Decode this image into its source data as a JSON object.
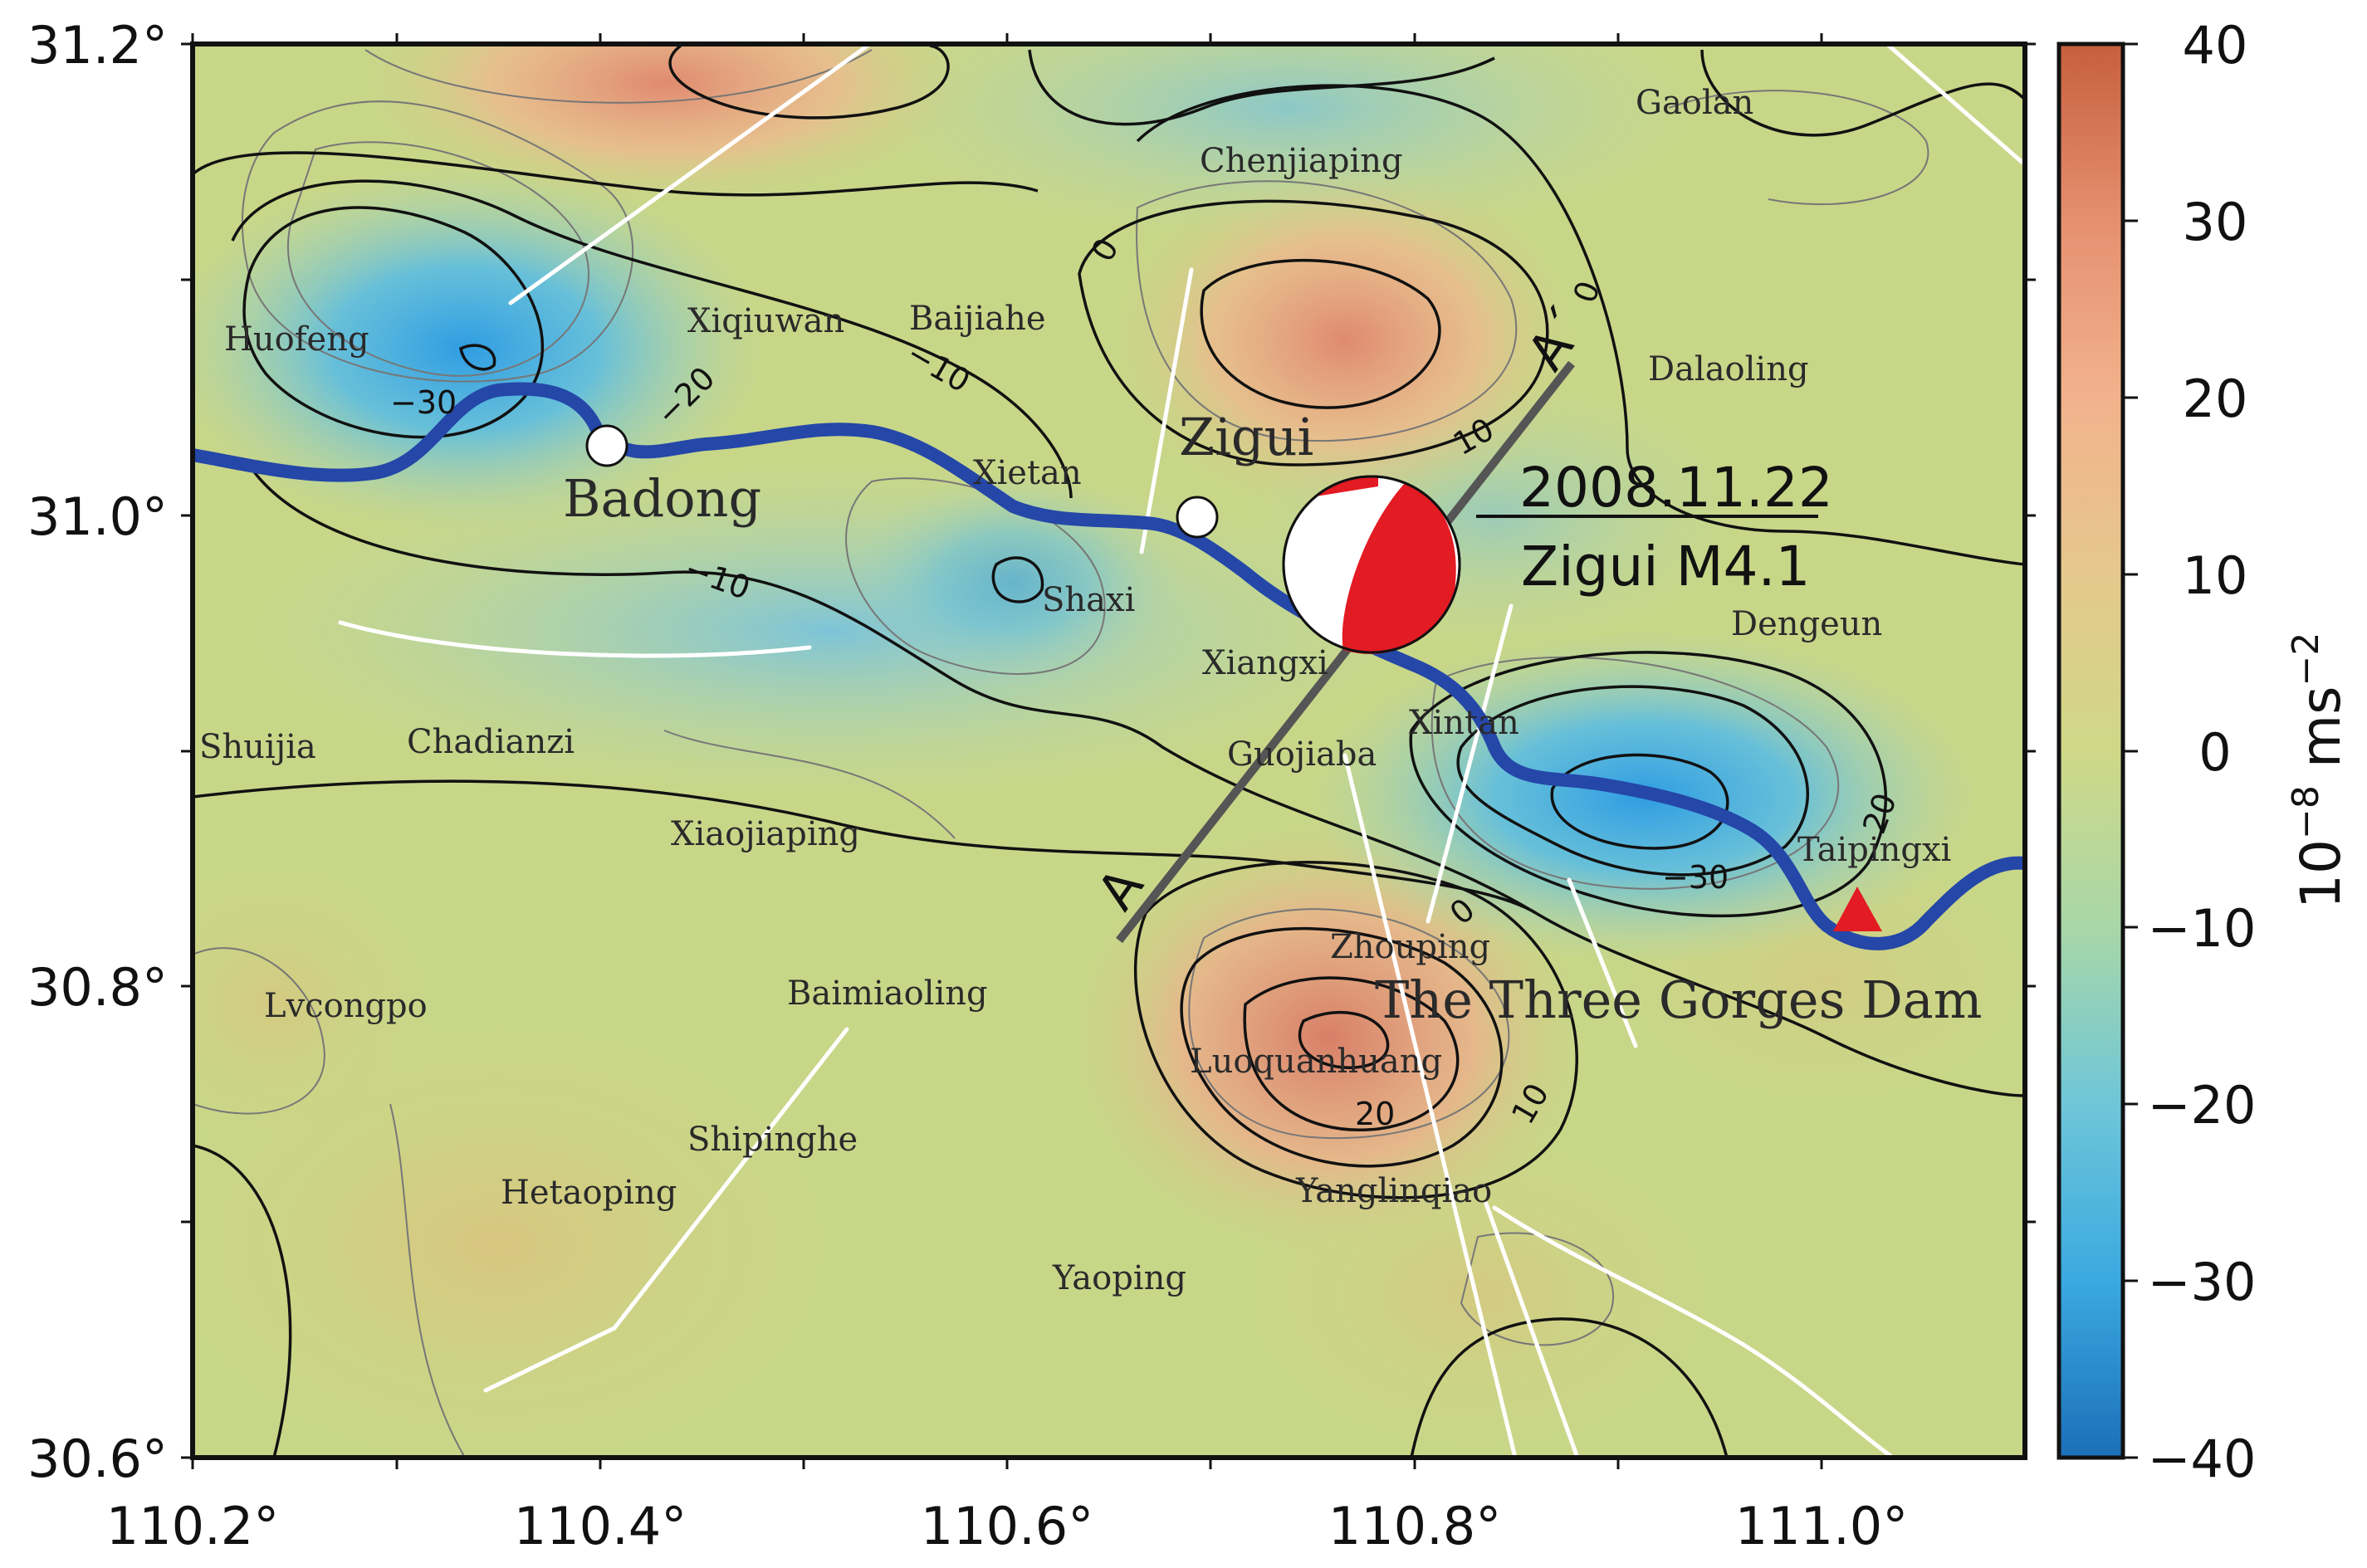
{
  "map": {
    "x_ticks": [
      "110.2°",
      "110.4°",
      "110.6°",
      "110.8°",
      "111.0°"
    ],
    "y_ticks": [
      "31.2°",
      "31.0°",
      "30.8°",
      "30.6°"
    ],
    "places": {
      "gaolan": "Gaolan",
      "chenjiaping": "Chenjiaping",
      "huofeng": "Huofeng",
      "xiqiuwan": "Xiqiuwan",
      "baijiahe": "Baijiahe",
      "dalaoling": "Dalaoling",
      "zigui": "Zigui",
      "badong": "Badong",
      "xietan": "Xietan",
      "shaxi": "Shaxi",
      "xiangxi": "Xiangxi",
      "dengeun": "Dengeun",
      "shuijia": "Shuijia",
      "chadianzi": "Chadianzi",
      "guojiaba": "Guojiaba",
      "xintan": "Xintan",
      "xiaojiaping": "Xiaojiaping",
      "taipingxi": "Taipingxi",
      "zhouping": "Zhouping",
      "three_gorges": "The Three Gorges Dam",
      "lvcongpo": "Lvcongpo",
      "baimiaoling": "Baimiaoling",
      "luoquanhuang": "Luoquanhuang",
      "shipinghe": "Shipinghe",
      "hetaoping": "Hetaoping",
      "yanglinqiao": "Yanglinqiao",
      "yaoping": "Yaoping"
    },
    "contour_labels": {
      "n30_west": "−30",
      "n20_west": "−20",
      "n10_baijiahe": "−10",
      "n10_badong": "−10",
      "zero_north": "0",
      "zero_northeast": "0",
      "ten_zigui": "10",
      "n30_east": "−30",
      "n20_east": "20",
      "zero_south": "0",
      "ten_south": "10",
      "twenty_south": "20"
    },
    "profile": {
      "start_label": "A",
      "end_label": "A´"
    },
    "event": {
      "date": "2008.11.22",
      "name": "Zigui M4.1"
    },
    "colors": {
      "river": "#2447a8",
      "profile_line": "#555555",
      "beachball_red": "#e31b23",
      "dam_marker": "#e31b23",
      "fault": "#ffffff"
    }
  },
  "colorbar": {
    "ticks": [
      "40",
      "30",
      "20",
      "10",
      "0",
      "−10",
      "−20",
      "−30",
      "−40"
    ],
    "unit_base": "10",
    "unit_exp": "−8",
    "unit_rest": " ms",
    "unit_exp2": "−2"
  }
}
